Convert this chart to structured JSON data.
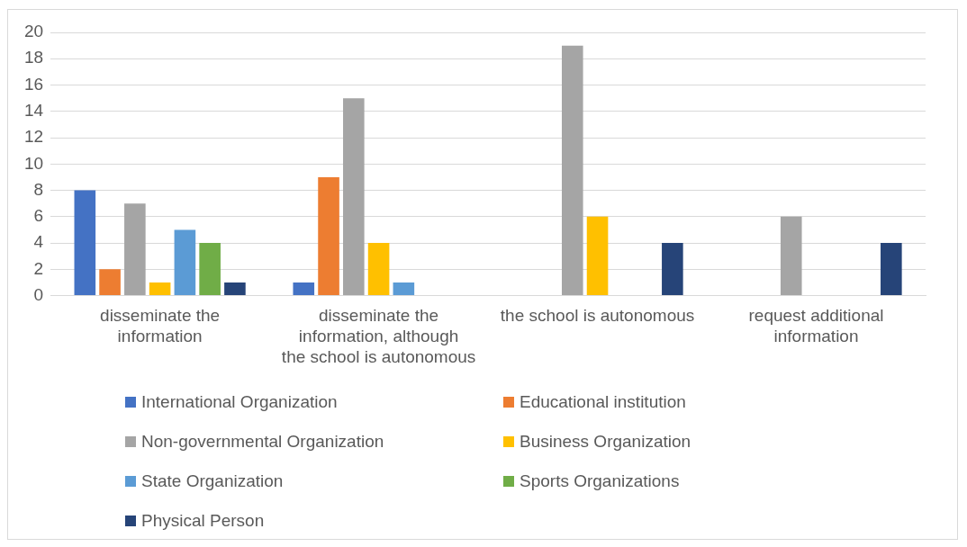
{
  "chart_data": {
    "type": "bar",
    "categories": [
      "disseminate the information",
      "disseminate the information, although the school is autonomous",
      "the school is autonomous",
      "request additional information"
    ],
    "series": [
      {
        "name": "International Organization",
        "color": "#4472c4",
        "values": [
          8,
          1,
          null,
          null
        ]
      },
      {
        "name": "Educational institution",
        "color": "#ed7d31",
        "values": [
          2,
          9,
          null,
          null
        ]
      },
      {
        "name": "Non-governmental Organization",
        "color": "#a5a5a5",
        "values": [
          7,
          15,
          19,
          6
        ]
      },
      {
        "name": "Business Organization",
        "color": "#ffc000",
        "values": [
          1,
          4,
          6,
          null
        ]
      },
      {
        "name": "State Organization",
        "color": "#5b9bd5",
        "values": [
          5,
          1,
          null,
          null
        ]
      },
      {
        "name": "Sports Organizations",
        "color": "#70ad47",
        "values": [
          4,
          null,
          null,
          null
        ]
      },
      {
        "name": "Physical Person",
        "color": "#264478",
        "values": [
          1,
          null,
          4,
          4
        ]
      }
    ],
    "ylim": [
      0,
      20
    ],
    "yticks": [
      0,
      2,
      4,
      6,
      8,
      10,
      12,
      14,
      16,
      18,
      20
    ],
    "grid": "y",
    "legend": "bottom"
  }
}
